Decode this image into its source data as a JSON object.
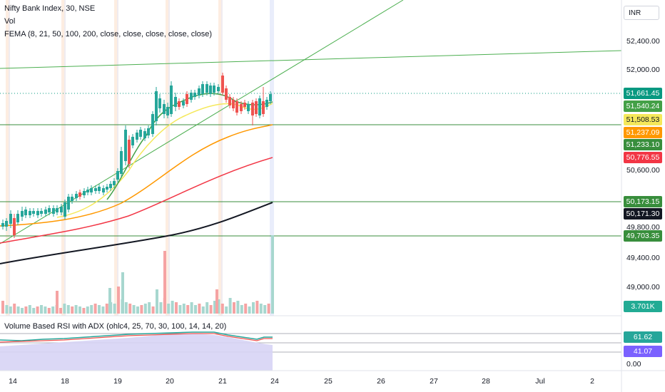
{
  "legend": {
    "symbol": "Nifty Bank Index, 30, NSE",
    "vol": "Vol",
    "fema": "FEMA (8, 21, 50, 100, 200, close, close, close, close, close)",
    "rsi": "Volume Based RSI with ADX (ohlc4, 25, 70, 30, 100, 14, 14, 20)"
  },
  "currency": "INR",
  "price_axis": [
    "52,400.00",
    "52,000.00",
    "50,600.00",
    "49,800.00",
    "49,400.00",
    "49,000.00"
  ],
  "price_tags": [
    {
      "label": "51,661.45",
      "color": "#089981",
      "text": "#ffffff"
    },
    {
      "label": "51,540.24",
      "color": "#43a047",
      "text": "#ffffff"
    },
    {
      "label": "51,508.53",
      "color": "#f5e85a",
      "text": "#131722"
    },
    {
      "label": "51,237.09",
      "color": "#ff9800",
      "text": "#ffffff"
    },
    {
      "label": "51,233.10",
      "color": "#388e3c",
      "text": "#ffffff"
    },
    {
      "label": "50,776.55",
      "color": "#f23645",
      "text": "#ffffff"
    },
    {
      "label": "50,173.15",
      "color": "#388e3c",
      "text": "#ffffff"
    },
    {
      "label": "50,171.30",
      "color": "#131722",
      "text": "#ffffff"
    },
    {
      "label": "49,703.35",
      "color": "#388e3c",
      "text": "#ffffff"
    },
    {
      "label": "3.701K",
      "color": "#22ab94",
      "text": "#ffffff"
    }
  ],
  "rsi_axis": {
    "top": "61.62",
    "mid": "41.07",
    "bottom": "0.00"
  },
  "x_axis": [
    "14",
    "18",
    "19",
    "20",
    "21",
    "24",
    "25",
    "26",
    "27",
    "28",
    "Jul",
    "2"
  ],
  "colors": {
    "up": "#26a69a",
    "down": "#ef5350",
    "ema8": "#43a047",
    "ema21": "#f5e85a",
    "ema50": "#ff9800",
    "ema100": "#f23645",
    "ema200": "#131722"
  }
}
